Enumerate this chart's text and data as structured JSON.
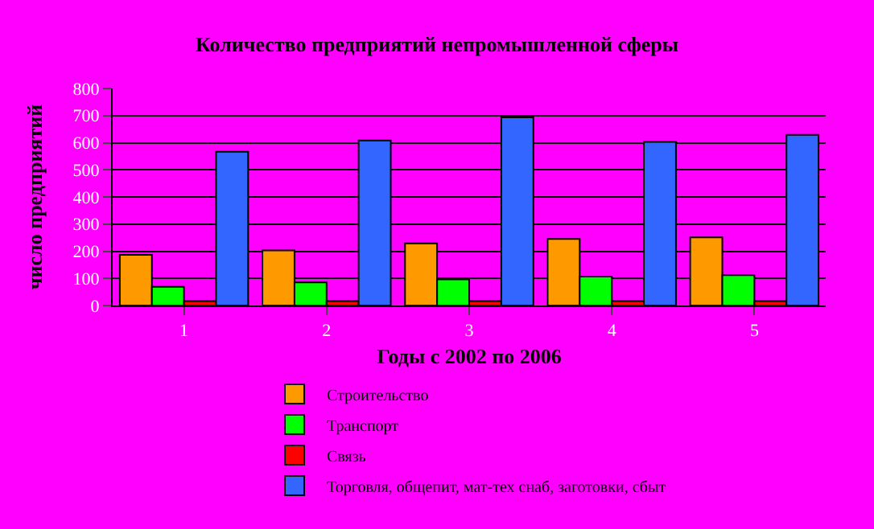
{
  "chart_data": {
    "type": "bar",
    "title": "Количество предприятий непромышленной сферы",
    "xlabel": "Годы с 2002 по 2006",
    "ylabel": "число предприятий",
    "categories": [
      "1",
      "2",
      "3",
      "4",
      "5"
    ],
    "series": [
      {
        "name": "Строительство",
        "color": "#ff9900",
        "values": [
          187,
          203,
          229,
          245,
          251
        ]
      },
      {
        "name": "Транспорт",
        "color": "#00ff00",
        "values": [
          69,
          85,
          96,
          107,
          112
        ]
      },
      {
        "name": "Связь",
        "color": "#ff0000",
        "values": [
          16,
          16,
          16,
          16,
          16
        ]
      },
      {
        "name": "Торговля, общепит, мат-тех снаб, заготовки, сбыт",
        "color": "#3366ff",
        "values": [
          567,
          608,
          693,
          603,
          629
        ]
      }
    ],
    "ylim": [
      0,
      800
    ],
    "yticks": [
      0,
      100,
      200,
      300,
      400,
      500,
      600,
      700,
      800
    ],
    "grid": "y",
    "legend": "bottom"
  }
}
